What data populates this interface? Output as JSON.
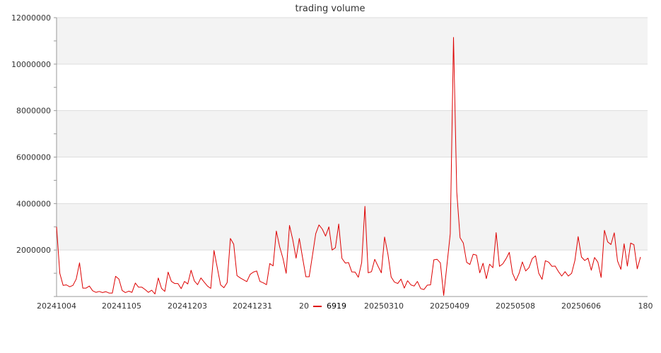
{
  "chart_data": {
    "type": "line",
    "title": "trading volume",
    "xlabel": "",
    "ylabel": "",
    "ylim": [
      0,
      12000000
    ],
    "yticks": [
      "2000000",
      "4000000",
      "6000000",
      "8000000",
      "10000000",
      "12000000"
    ],
    "xtick_labels": [
      "20241004",
      "20241105",
      "20241203",
      "20241231",
      "20",
      "20250310",
      "20250409",
      "20250508",
      "20250606",
      "180"
    ],
    "grid": true,
    "legend": {
      "placement": "bottom",
      "entries": [
        {
          "label": "6919",
          "color": "#dd0000"
        }
      ]
    },
    "series": [
      {
        "name": "6919",
        "color": "#dd0000",
        "values": [
          3000000,
          1000000,
          480000,
          500000,
          420000,
          480000,
          750000,
          1450000,
          360000,
          360000,
          450000,
          250000,
          180000,
          220000,
          170000,
          210000,
          150000,
          150000,
          870000,
          750000,
          260000,
          170000,
          230000,
          180000,
          580000,
          400000,
          400000,
          300000,
          180000,
          270000,
          110000,
          800000,
          350000,
          220000,
          1050000,
          650000,
          560000,
          560000,
          340000,
          650000,
          540000,
          1130000,
          670000,
          510000,
          800000,
          620000,
          450000,
          350000,
          1980000,
          1230000,
          500000,
          380000,
          600000,
          2500000,
          2250000,
          900000,
          800000,
          720000,
          640000,
          950000,
          1050000,
          1100000,
          650000,
          590000,
          510000,
          1420000,
          1320000,
          2820000,
          2140000,
          1650000,
          1000000,
          3060000,
          2450000,
          1650000,
          2500000,
          1670000,
          850000,
          850000,
          1770000,
          2700000,
          3080000,
          2900000,
          2600000,
          3000000,
          2000000,
          2100000,
          3120000,
          1640000,
          1440000,
          1460000,
          1060000,
          1050000,
          830000,
          1460000,
          3880000,
          1020000,
          1070000,
          1600000,
          1300000,
          1020000,
          2560000,
          1830000,
          840000,
          620000,
          560000,
          750000,
          360000,
          680000,
          500000,
          450000,
          650000,
          340000,
          300000,
          490000,
          500000,
          1580000,
          1600000,
          1450000,
          50000,
          1350000,
          2700000,
          11150000,
          4500000,
          2530000,
          2300000,
          1470000,
          1380000,
          1820000,
          1780000,
          1020000,
          1430000,
          770000,
          1390000,
          1240000,
          2750000,
          1300000,
          1400000,
          1620000,
          1900000,
          1000000,
          680000,
          1000000,
          1490000,
          1100000,
          1240000,
          1630000,
          1750000,
          1000000,
          740000,
          1540000,
          1480000,
          1300000,
          1310000,
          1070000,
          880000,
          1070000,
          880000,
          1000000,
          1550000,
          2580000,
          1700000,
          1550000,
          1650000,
          1130000,
          1680000,
          1480000,
          820000,
          2850000,
          2350000,
          2240000,
          2740000,
          1530000,
          1170000,
          2270000,
          1310000,
          2300000,
          2230000,
          1190000,
          1700000
        ]
      }
    ]
  }
}
